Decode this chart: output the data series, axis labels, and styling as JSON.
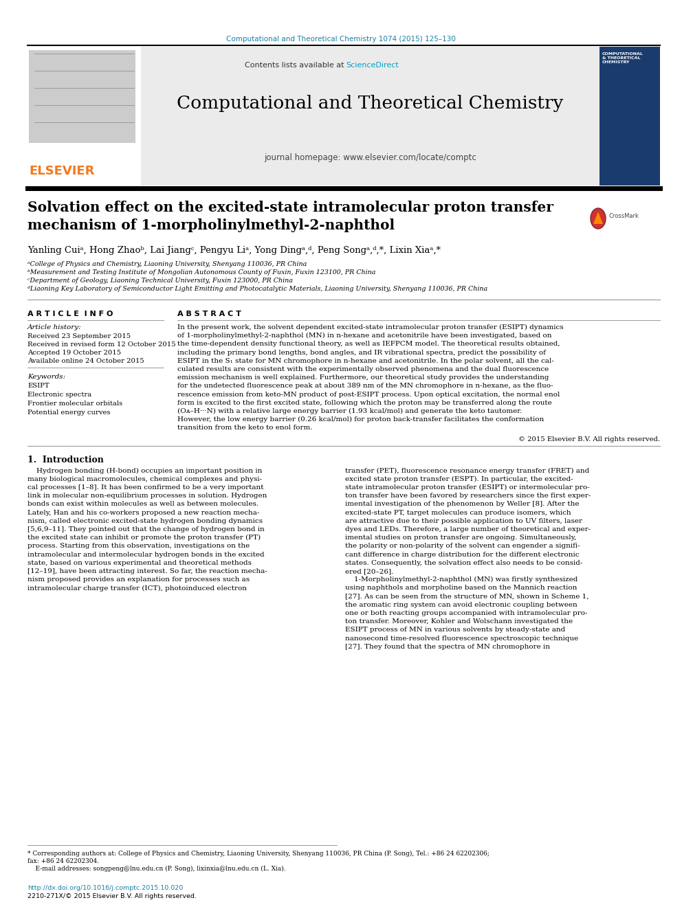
{
  "journal_ref": "Computational and Theoretical Chemistry 1074 (2015) 125–130",
  "journal_title": "Computational and Theoretical Chemistry",
  "journal_homepage": "journal homepage: www.elsevier.com/locate/comptc",
  "contents_text": "Contents lists available at ",
  "sciencedirect_link": "ScienceDirect",
  "elsevier_color": "#F47920",
  "sciencedirect_color": "#00A0C6",
  "paper_title_line1": "Solvation effect on the excited-state intramolecular proton transfer",
  "paper_title_line2": "mechanism of 1-morpholinylmethyl-2-naphthol",
  "author_line": "Yanling Cuiᵃ, Hong Zhaoᵇ, Lai Jiangᶜ, Pengyu Liᵃ, Yong Dingᵃ,ᵈ, Peng Songᵃ,ᵈ,*, Lixin Xiaᵃ,*",
  "affil_a": "ᵃCollege of Physics and Chemistry, Liaoning University, Shenyang 110036, PR China",
  "affil_b": "ᵇMeasurement and Testing Institute of Mongolian Autonomous County of Fuxin, Fuxin 123100, PR China",
  "affil_c": "ᶜDepartment of Geology, Liaoning Technical University, Fuxin 123000, PR China",
  "affil_d": "ᵈLiaoning Key Laboratory of Semiconductor Light Emitting and Photocatalytic Materials, Liaoning University, Shenyang 110036, PR China",
  "article_info_title": "A R T I C L E  I N F O",
  "article_history_title": "Article history:",
  "received": "Received 23 September 2015",
  "revised": "Received in revised form 12 October 2015",
  "accepted": "Accepted 19 October 2015",
  "online": "Available online 24 October 2015",
  "keywords_title": "Keywords:",
  "keywords": [
    "ESIPT",
    "Electronic spectra",
    "Frontier molecular orbitals",
    "Potential energy curves"
  ],
  "abstract_title": "A B S T R A C T",
  "abstract_lines": [
    "In the present work, the solvent dependent excited-state intramolecular proton transfer (ESIPT) dynamics",
    "of 1-morpholinylmethyl-2-naphthol (MN) in n-hexane and acetonitrile have been investigated, based on",
    "the time-dependent density functional theory, as well as IEFPCM model. The theoretical results obtained,",
    "including the primary bond lengths, bond angles, and IR vibrational spectra, predict the possibility of",
    "ESIPT in the S₁ state for MN chromophore in n-hexane and acetonitrile. In the polar solvent, all the cal-",
    "culated results are consistent with the experimentally observed phenomena and the dual fluorescence",
    "emission mechanism is well explained. Furthermore, our theoretical study provides the understanding",
    "for the undetected fluorescence peak at about 389 nm of the MN chromophore in n-hexane, as the fluo-",
    "rescence emission from keto-MN product of post-ESIPT process. Upon optical excitation, the normal enol",
    "form is excited to the first excited state, following which the proton may be transferred along the route",
    "(Oᴀ–H···N) with a relative large energy barrier (1.93 kcal/mol) and generate the keto tautomer.",
    "However, the low energy barrier (0.26 kcal/mol) for proton back-transfer facilitates the conformation",
    "transition from the keto to enol form."
  ],
  "copyright": "© 2015 Elsevier B.V. All rights reserved.",
  "intro_title": "1.  Introduction",
  "intro_col1_lines": [
    "    Hydrogen bonding (H-bond) occupies an important position in",
    "many biological macromolecules, chemical complexes and physi-",
    "cal processes [1–8]. It has been confirmed to be a very important",
    "link in molecular non-equilibrium processes in solution. Hydrogen",
    "bonds can exist within molecules as well as between molecules.",
    "Lately, Han and his co-workers proposed a new reaction mecha-",
    "nism, called electronic excited-state hydrogen bonding dynamics",
    "[5,6,9–11]. They pointed out that the change of hydrogen bond in",
    "the excited state can inhibit or promote the proton transfer (PT)",
    "process. Starting from this observation, investigations on the",
    "intramolecular and intermolecular hydrogen bonds in the excited",
    "state, based on various experimental and theoretical methods",
    "[12–19], have been attracting interest. So far, the reaction mecha-",
    "nism proposed provides an explanation for processes such as",
    "intramolecular charge transfer (ICT), photoinduced electron"
  ],
  "intro_col2_lines": [
    "transfer (PET), fluorescence resonance energy transfer (FRET) and",
    "excited state proton transfer (ESPT). In particular, the excited-",
    "state intramolecular proton transfer (ESIPT) or intermolecular pro-",
    "ton transfer have been favored by researchers since the first exper-",
    "imental investigation of the phenomenon by Weller [8]. After the",
    "excited-state PT, target molecules can produce isomers, which",
    "are attractive due to their possible application to UV filters, laser",
    "dyes and LEDs. Therefore, a large number of theoretical and exper-",
    "imental studies on proton transfer are ongoing. Simultaneously,",
    "the polarity or non-polarity of the solvent can engender a signifi-",
    "cant difference in charge distribution for the different electronic",
    "states. Consequently, the solvation effect also needs to be consid-",
    "ered [20–26].",
    "    1-Morpholinylmethyl-2-naphthol (MN) was firstly synthesized",
    "using naphthols and morpholine based on the Mannich reaction",
    "[27]. As can be seen from the structure of MN, shown in Scheme 1,",
    "the aromatic ring system can avoid electronic coupling between",
    "one or both reacting groups accompanied with intramolecular pro-",
    "ton transfer. Moreover, Kohler and Wolschann investigated the",
    "ESIPT process of MN in various solvents by steady-state and",
    "nanosecond time-resolved fluorescence spectroscopic technique",
    "[27]. They found that the spectra of MN chromophore in"
  ],
  "footnote_lines": [
    "* Corresponding authors at: College of Physics and Chemistry, Liaoning University, Shenyang 110036, PR China (P. Song), Tel.: +86 24 62202306;",
    "fax: +86 24 62202304.",
    "    E-mail addresses: songpeng@lnu.edu.cn (P. Song), lixinxia@lnu.edu.cn (L. Xia)."
  ],
  "doi_text": "http://dx.doi.org/10.1016/j.comptc.2015.10.020",
  "issn_text": "2210-271X/© 2015 Elsevier B.V. All rights reserved.",
  "header_teal": "#1B7EA6",
  "bg_gray": "#EBEBEB",
  "cover_bg": "#1A3B6E",
  "cover_title": "COMPUTATIONAL\n& THEORETICAL\nCHEMISTRY"
}
